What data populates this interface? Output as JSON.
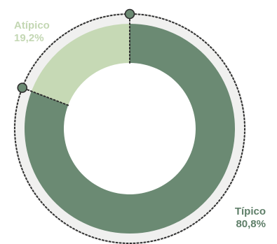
{
  "chart_data": {
    "type": "pie",
    "variant": "donut",
    "categories": [
      "Típico",
      "Atípico"
    ],
    "values": [
      80.8,
      19.2
    ],
    "value_labels": [
      "80,8%",
      "19,2%"
    ],
    "colors": [
      "#6b8a73",
      "#c6d9b5"
    ],
    "track_color": "#f0f0ef",
    "marker_color": "#6b8a73",
    "title": "",
    "legend": "none"
  },
  "labels": {
    "atipico": {
      "name": "Atípico",
      "value": "19,2%"
    },
    "tipico": {
      "name": "Típico",
      "value": "80,8%"
    }
  }
}
